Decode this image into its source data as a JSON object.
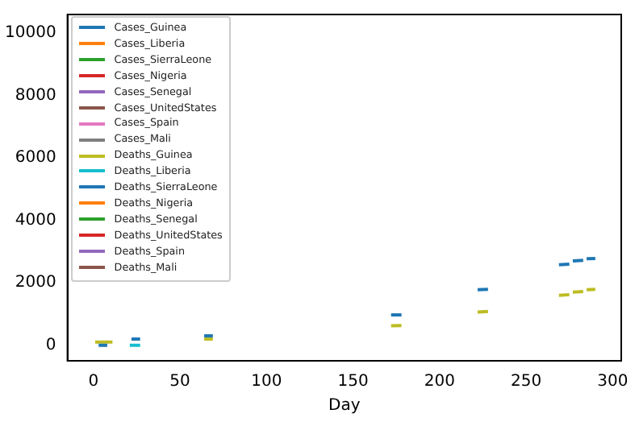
{
  "chart_data": {
    "type": "line",
    "xlabel": "Day",
    "series": [
      {
        "name": "Cases_Guinea",
        "color": "#1f77b4",
        "x": [
          3,
          8,
          15,
          22,
          27,
          45,
          64,
          69,
          120,
          172,
          178,
          200,
          222,
          228,
          250,
          269,
          275,
          276,
          277,
          283,
          284,
          285,
          290
        ],
        "values": [
          0,
          0,
          null,
          200,
          200,
          null,
          300,
          300,
          null,
          970,
          970,
          null,
          1780,
          1790,
          null,
          2580,
          2600,
          null,
          2700,
          2720,
          null,
          2770,
          2780
        ]
      },
      {
        "name": "Cases_Liberia",
        "color": "#ff7f0e"
      },
      {
        "name": "Cases_SierraLeone",
        "color": "#2ca02c"
      },
      {
        "name": "Cases_Nigeria",
        "color": "#d62728"
      },
      {
        "name": "Cases_Senegal",
        "color": "#9467bd"
      },
      {
        "name": "Cases_UnitedStates",
        "color": "#8c564b"
      },
      {
        "name": "Cases_Spain",
        "color": "#e377c2"
      },
      {
        "name": "Cases_Mali",
        "color": "#7f7f7f"
      },
      {
        "name": "Deaths_Guinea",
        "color": "#bcbd22",
        "x": [
          1,
          11,
          40,
          64,
          69,
          120,
          172,
          178,
          200,
          222,
          228,
          250,
          269,
          275,
          276,
          277,
          283,
          284,
          285,
          290
        ],
        "values": [
          100,
          100,
          null,
          200,
          200,
          null,
          620,
          630,
          null,
          1060,
          1080,
          null,
          1600,
          1620,
          null,
          1700,
          1720,
          null,
          1780,
          1790
        ]
      },
      {
        "name": "Deaths_Liberia",
        "color": "#17becf",
        "x": [
          21,
          27
        ],
        "values": [
          0,
          0
        ]
      },
      {
        "name": "Deaths_SierraLeone",
        "color": "#1f77b4"
      },
      {
        "name": "Deaths_Nigeria",
        "color": "#ff7f0e"
      },
      {
        "name": "Deaths_Senegal",
        "color": "#2ca02c"
      },
      {
        "name": "Deaths_UnitedStates",
        "color": "#d62728"
      },
      {
        "name": "Deaths_Spain",
        "color": "#9467bd"
      },
      {
        "name": "Deaths_Mali",
        "color": "#8c564b"
      }
    ],
    "xlim": [
      -15,
      305
    ],
    "xticks": [
      0,
      50,
      100,
      150,
      200,
      250,
      300
    ],
    "ylim": [
      -500,
      10600
    ],
    "yticks": [
      0,
      2000,
      4000,
      6000,
      8000,
      10000
    ],
    "legend": "top left",
    "grid": false,
    "marker": "none",
    "line_style": "solid"
  }
}
